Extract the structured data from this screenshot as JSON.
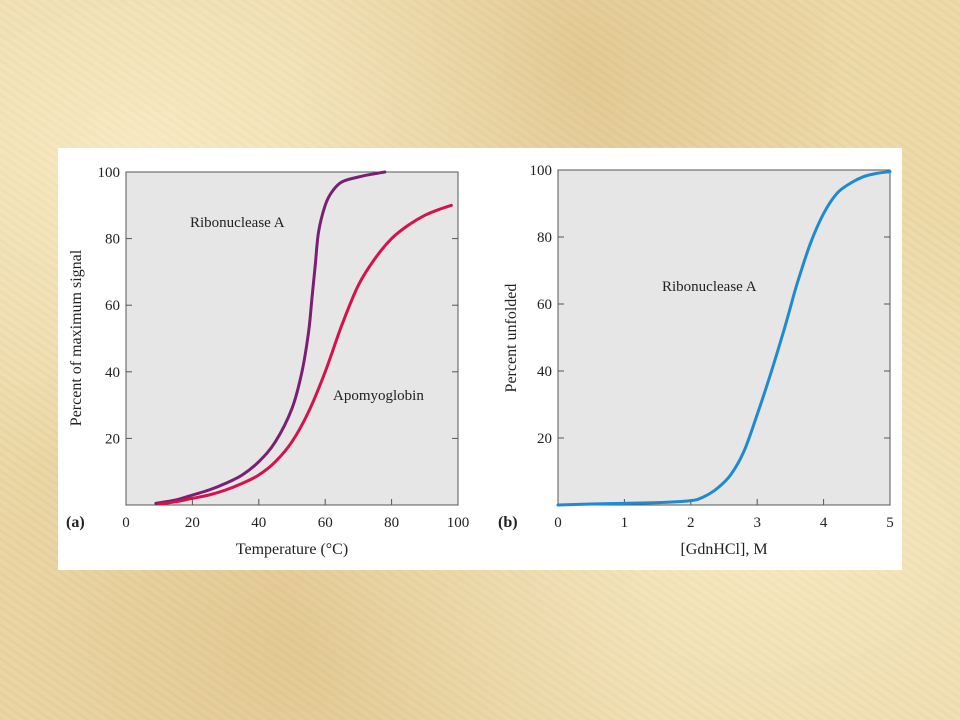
{
  "chart_data": [
    {
      "type": "line",
      "panel_label": "(a)",
      "xlabel": "Temperature (°C)",
      "ylabel": "Percent of maximum signal",
      "xlim": [
        0,
        100
      ],
      "ylim": [
        0,
        100
      ],
      "xticks": [
        "0",
        "20",
        "40",
        "60",
        "80",
        "100"
      ],
      "yticks": [
        "20",
        "40",
        "60",
        "80",
        "100"
      ],
      "grid": false,
      "background": "#e6e6e6",
      "series": [
        {
          "name": "Ribonuclease A",
          "color": "#7a1f73",
          "x": [
            9,
            15,
            20,
            25,
            30,
            35,
            40,
            45,
            50,
            53,
            55,
            56,
            57,
            58,
            60,
            62,
            65,
            70,
            75,
            78
          ],
          "y": [
            0.5,
            1.5,
            3,
            4.5,
            6.5,
            9,
            13,
            19,
            29,
            40,
            52,
            62,
            72,
            82,
            90,
            94,
            97,
            98.5,
            99.5,
            100
          ]
        },
        {
          "name": "Apomyoglobin",
          "color": "#d4124e",
          "x": [
            10,
            15,
            20,
            25,
            30,
            35,
            40,
            45,
            50,
            55,
            60,
            65,
            70,
            75,
            80,
            85,
            90,
            95,
            98
          ],
          "y": [
            0.3,
            1,
            2,
            3,
            4.5,
            6.5,
            9,
            13,
            19,
            28,
            40,
            54,
            66,
            74,
            80,
            84,
            87,
            89,
            90
          ]
        }
      ]
    },
    {
      "type": "line",
      "panel_label": "(b)",
      "xlabel": "[GdnHCl], M",
      "ylabel": "Percent unfolded",
      "xlim": [
        0,
        5
      ],
      "ylim": [
        0,
        100
      ],
      "xticks": [
        "0",
        "1",
        "2",
        "3",
        "4",
        "5"
      ],
      "yticks": [
        "20",
        "40",
        "60",
        "80",
        "100"
      ],
      "grid": false,
      "background": "#e6e6e6",
      "series": [
        {
          "name": "Ribonuclease A",
          "color": "#1f8ad0",
          "x": [
            0,
            0.5,
            1,
            1.5,
            2,
            2.2,
            2.4,
            2.6,
            2.8,
            3,
            3.2,
            3.4,
            3.5,
            3.6,
            3.8,
            4,
            4.2,
            4.4,
            4.6,
            4.8,
            5
          ],
          "y": [
            0,
            0.3,
            0.5,
            0.7,
            1.3,
            2.5,
            5,
            9,
            16,
            27,
            39,
            52,
            59,
            66,
            78,
            87,
            93,
            96,
            98,
            99,
            99.5
          ]
        }
      ]
    }
  ]
}
